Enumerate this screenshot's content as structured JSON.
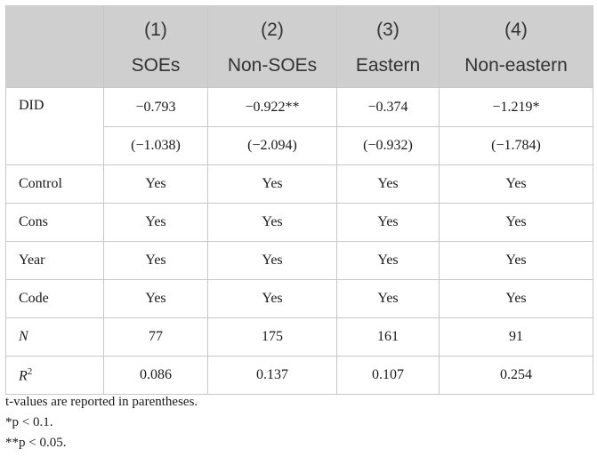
{
  "header": {
    "columns": [
      {
        "num": "(1)",
        "label": "SOEs"
      },
      {
        "num": "(2)",
        "label": "Non-SOEs"
      },
      {
        "num": "(3)",
        "label": "Eastern"
      },
      {
        "num": "(4)",
        "label": "Non-eastern"
      }
    ]
  },
  "rows": {
    "did": {
      "label": "DID",
      "coef": [
        "−0.793",
        "−0.922**",
        "−0.374",
        "−1.219*"
      ],
      "t": [
        "(−1.038)",
        "(−2.094)",
        "(−0.932)",
        "(−1.784)"
      ]
    },
    "control": {
      "label": "Control",
      "values": [
        "Yes",
        "Yes",
        "Yes",
        "Yes"
      ]
    },
    "cons": {
      "label": "Cons",
      "values": [
        "Yes",
        "Yes",
        "Yes",
        "Yes"
      ]
    },
    "year": {
      "label": "Year",
      "values": [
        "Yes",
        "Yes",
        "Yes",
        "Yes"
      ]
    },
    "code": {
      "label": "Code",
      "values": [
        "Yes",
        "Yes",
        "Yes",
        "Yes"
      ]
    },
    "n": {
      "label": "N",
      "values": [
        "77",
        "175",
        "161",
        "91"
      ]
    },
    "r2": {
      "label": "R",
      "label_sup": "2",
      "values": [
        "0.086",
        "0.137",
        "0.107",
        "0.254"
      ]
    }
  },
  "notes": [
    "t-values are reported in parentheses.",
    "*p < 0.1.",
    "**p < 0.05."
  ]
}
